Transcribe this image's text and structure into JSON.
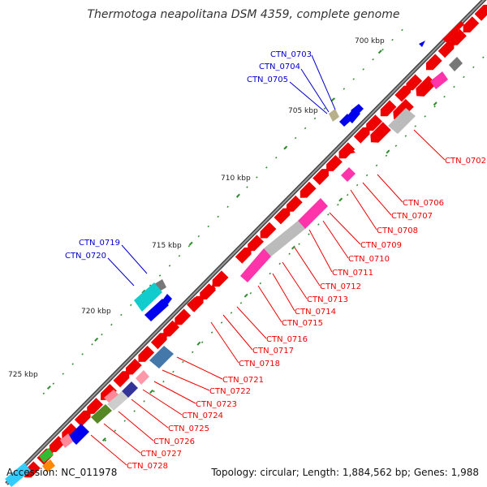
{
  "title": "Thermotoga neapolitana DSM 4359, complete genome",
  "footer": {
    "accession": "Accession: NC_011978",
    "topology": "Topology: circular; Length: 1,884,562 bp; Genes: 1,988"
  },
  "ruler_labels": [
    "700 kbp",
    "705 kbp",
    "710 kbp",
    "715 kbp",
    "720 kbp",
    "725 kbp"
  ],
  "colors": {
    "backbone": "#777777",
    "tick": "#2e8b2e",
    "red_gene": "#ee0000",
    "blue_gene": "#0000ee",
    "pink_gene": "#ff33aa",
    "gray_gene": "#bbbbbb",
    "label_red": "#ee0000",
    "label_blue": "#0000cc"
  },
  "gene_labels_blue": [
    "CTN_0703",
    "CTN_0704",
    "CTN_0705",
    "CTN_0719",
    "CTN_0720"
  ],
  "gene_labels_red": [
    "CTN_0702",
    "CTN_0706",
    "CTN_0707",
    "CTN_0708",
    "CTN_0709",
    "CTN_0710",
    "CTN_0711",
    "CTN_0712",
    "CTN_0713",
    "CTN_0714",
    "CTN_0715",
    "CTN_0716",
    "CTN_0717",
    "CTN_0718",
    "CTN_0721",
    "CTN_0722",
    "CTN_0723",
    "CTN_0724",
    "CTN_0725",
    "CTN_0726",
    "CTN_0727",
    "CTN_0728"
  ]
}
